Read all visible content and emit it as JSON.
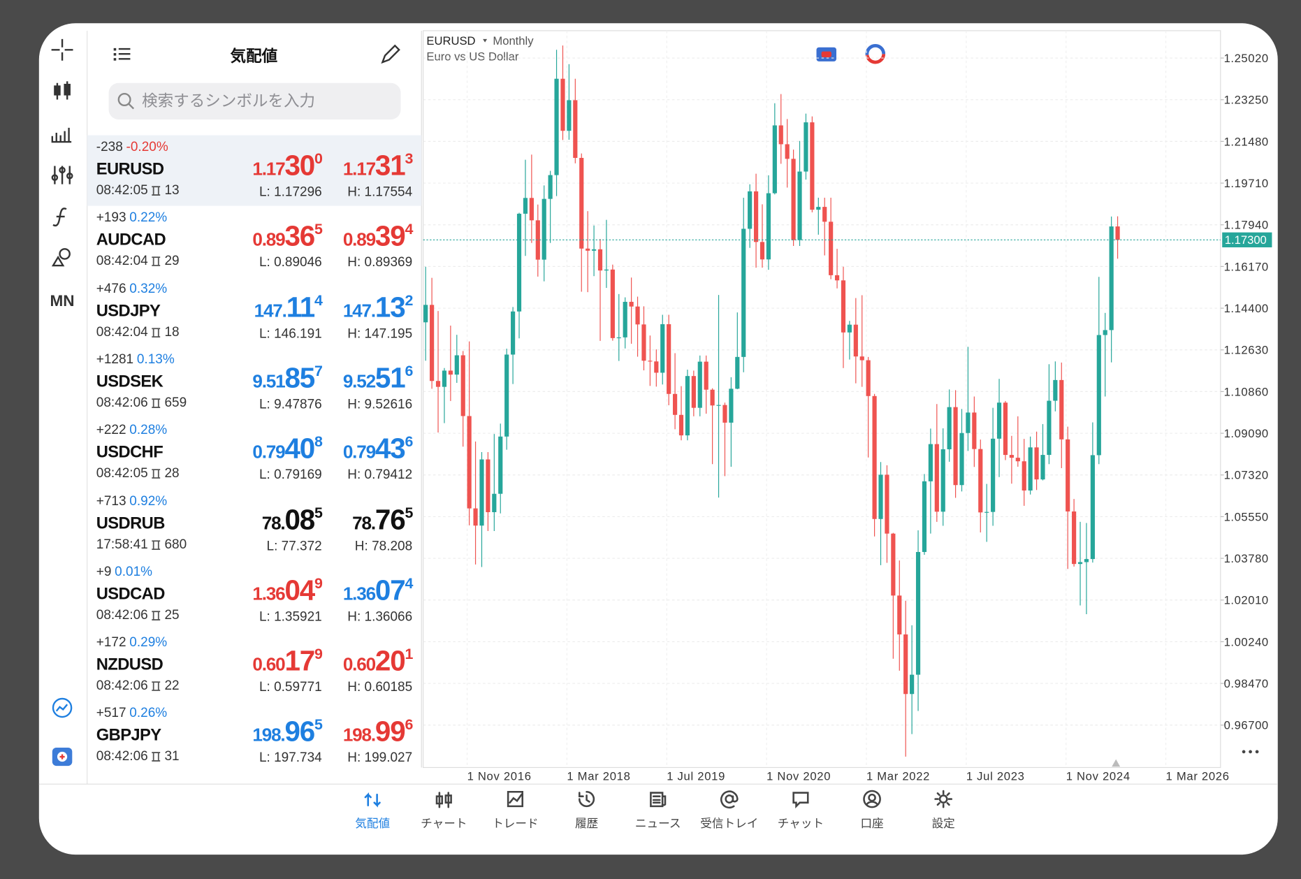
{
  "panel": {
    "title": "気配値",
    "search_placeholder": "検索するシンボルを入力"
  },
  "toolbar": {
    "period_label": "MN"
  },
  "quotes": [
    {
      "change": "-238",
      "pct": "-0.20%",
      "pct_color": "#e53935",
      "symbol": "EURUSD",
      "time": "08:42:05",
      "spread": "13",
      "bid": {
        "prefix": "1.17",
        "big": "30",
        "sup": "0"
      },
      "bid_color": "#e53935",
      "ask": {
        "prefix": "1.17",
        "big": "31",
        "sup": "3"
      },
      "ask_color": "#e53935",
      "low": "L: 1.17296",
      "high": "H: 1.17554",
      "selected": true
    },
    {
      "change": "+193",
      "pct": "0.22%",
      "pct_color": "#1e7fe0",
      "symbol": "AUDCAD",
      "time": "08:42:04",
      "spread": "29",
      "bid": {
        "prefix": "0.89",
        "big": "36",
        "sup": "5"
      },
      "bid_color": "#e53935",
      "ask": {
        "prefix": "0.89",
        "big": "39",
        "sup": "4"
      },
      "ask_color": "#e53935",
      "low": "L: 0.89046",
      "high": "H: 0.89369"
    },
    {
      "change": "+476",
      "pct": "0.32%",
      "pct_color": "#1e7fe0",
      "symbol": "USDJPY",
      "time": "08:42:04",
      "spread": "18",
      "bid": {
        "prefix": "147.",
        "big": "11",
        "sup": "4"
      },
      "bid_color": "#1e7fe0",
      "ask": {
        "prefix": "147.",
        "big": "13",
        "sup": "2"
      },
      "ask_color": "#1e7fe0",
      "low": "L: 146.191",
      "high": "H: 147.195"
    },
    {
      "change": "+1281",
      "pct": "0.13%",
      "pct_color": "#1e7fe0",
      "symbol": "USDSEK",
      "time": "08:42:06",
      "spread": "659",
      "bid": {
        "prefix": "9.51",
        "big": "85",
        "sup": "7"
      },
      "bid_color": "#1e7fe0",
      "ask": {
        "prefix": "9.52",
        "big": "51",
        "sup": "6"
      },
      "ask_color": "#1e7fe0",
      "low": "L: 9.47876",
      "high": "H: 9.52616"
    },
    {
      "change": "+222",
      "pct": "0.28%",
      "pct_color": "#1e7fe0",
      "symbol": "USDCHF",
      "time": "08:42:05",
      "spread": "28",
      "bid": {
        "prefix": "0.79",
        "big": "40",
        "sup": "8"
      },
      "bid_color": "#1e7fe0",
      "ask": {
        "prefix": "0.79",
        "big": "43",
        "sup": "6"
      },
      "ask_color": "#1e7fe0",
      "low": "L: 0.79169",
      "high": "H: 0.79412"
    },
    {
      "change": "+713",
      "pct": "0.92%",
      "pct_color": "#1e7fe0",
      "symbol": "USDRUB",
      "time": "17:58:41",
      "spread": "680",
      "bid": {
        "prefix": "78.",
        "big": "08",
        "sup": "5"
      },
      "bid_color": "#111111",
      "ask": {
        "prefix": "78.",
        "big": "76",
        "sup": "5"
      },
      "ask_color": "#111111",
      "low": "L: 77.372",
      "high": "H: 78.208"
    },
    {
      "change": "+9",
      "pct": "0.01%",
      "pct_color": "#1e7fe0",
      "symbol": "USDCAD",
      "time": "08:42:06",
      "spread": "25",
      "bid": {
        "prefix": "1.36",
        "big": "04",
        "sup": "9"
      },
      "bid_color": "#e53935",
      "ask": {
        "prefix": "1.36",
        "big": "07",
        "sup": "4"
      },
      "ask_color": "#1e7fe0",
      "low": "L: 1.35921",
      "high": "H: 1.36066"
    },
    {
      "change": "+172",
      "pct": "0.29%",
      "pct_color": "#1e7fe0",
      "symbol": "NZDUSD",
      "time": "08:42:06",
      "spread": "22",
      "bid": {
        "prefix": "0.60",
        "big": "17",
        "sup": "9"
      },
      "bid_color": "#e53935",
      "ask": {
        "prefix": "0.60",
        "big": "20",
        "sup": "1"
      },
      "ask_color": "#e53935",
      "low": "L: 0.59771",
      "high": "H: 0.60185"
    },
    {
      "change": "+517",
      "pct": "0.26%",
      "pct_color": "#1e7fe0",
      "symbol": "GBPJPY",
      "time": "08:42:06",
      "spread": "31",
      "bid": {
        "prefix": "198.",
        "big": "96",
        "sup": "5"
      },
      "bid_color": "#1e7fe0",
      "ask": {
        "prefix": "198.",
        "big": "99",
        "sup": "6"
      },
      "ask_color": "#e53935",
      "low": "L: 197.734",
      "high": "H: 199.027"
    }
  ],
  "chart": {
    "type": "candlestick",
    "symbol": "EURUSD",
    "period": "Monthly",
    "description": "Euro vs US Dollar",
    "up_color": "#26a69a",
    "down_color": "#ef5350",
    "grid": true,
    "ylim": [
      0.949,
      1.2618
    ],
    "yticks": [
      {
        "value": 1.2502,
        "label": "1.25020"
      },
      {
        "value": 1.2325,
        "label": "1.23250"
      },
      {
        "value": 1.2148,
        "label": "1.21480"
      },
      {
        "value": 1.1971,
        "label": "1.19710"
      },
      {
        "value": 1.1794,
        "label": "1.17940"
      },
      {
        "value": 1.1617,
        "label": "1.16170"
      },
      {
        "value": 1.144,
        "label": "1.14400"
      },
      {
        "value": 1.1263,
        "label": "1.12630"
      },
      {
        "value": 1.1086,
        "label": "1.10860"
      },
      {
        "value": 1.0909,
        "label": "1.09090"
      },
      {
        "value": 1.0732,
        "label": "1.07320"
      },
      {
        "value": 1.0555,
        "label": "1.05550"
      },
      {
        "value": 1.0378,
        "label": "1.03780"
      },
      {
        "value": 1.0201,
        "label": "1.02010"
      },
      {
        "value": 1.0024,
        "label": "1.00240"
      },
      {
        "value": 0.9847,
        "label": "0.98470"
      },
      {
        "value": 0.967,
        "label": "0.96700"
      }
    ],
    "current": {
      "value": 1.173,
      "label": "1.17300"
    },
    "x_labels": [
      "1 Nov 2016",
      "1 Mar 2018",
      "1 Jul 2019",
      "1 Nov 2020",
      "1 Mar 2022",
      "1 Jul 2023",
      "1 Nov 2024",
      "1 Mar 2026"
    ],
    "candles": [
      [
        1.138,
        1.1616,
        1.1217,
        1.1454
      ],
      [
        1.1454,
        1.1569,
        1.1098,
        1.1131
      ],
      [
        1.1131,
        1.1428,
        1.0912,
        1.1106
      ],
      [
        1.1106,
        1.1186,
        1.0952,
        1.1175
      ],
      [
        1.1175,
        1.1366,
        1.1046,
        1.1158
      ],
      [
        1.1158,
        1.1327,
        1.1123,
        1.124
      ],
      [
        1.124,
        1.1258,
        1.0852,
        1.0982
      ],
      [
        1.0982,
        1.1299,
        1.0518,
        1.059
      ],
      [
        1.059,
        1.0874,
        1.0352,
        1.0517
      ],
      [
        1.0517,
        1.0829,
        1.0341,
        1.0798
      ],
      [
        1.0798,
        1.0829,
        1.0494,
        1.0574
      ],
      [
        1.0574,
        1.0906,
        1.0494,
        1.0652
      ],
      [
        1.0652,
        1.095,
        1.0569,
        1.0895
      ],
      [
        1.0895,
        1.1268,
        1.0839,
        1.1243
      ],
      [
        1.1243,
        1.1445,
        1.1118,
        1.1426
      ],
      [
        1.1426,
        1.1845,
        1.1312,
        1.1841
      ],
      [
        1.1841,
        1.207,
        1.1662,
        1.1908
      ],
      [
        1.1908,
        1.2092,
        1.1717,
        1.1813
      ],
      [
        1.1813,
        1.188,
        1.1574,
        1.1646
      ],
      [
        1.1646,
        1.1961,
        1.1554,
        1.1904
      ],
      [
        1.1904,
        1.2023,
        1.1717,
        1.2005
      ],
      [
        1.2005,
        1.2537,
        1.1916,
        1.2414
      ],
      [
        1.2414,
        1.2555,
        1.2154,
        1.2193
      ],
      [
        1.2193,
        1.2476,
        1.2155,
        1.2323
      ],
      [
        1.2323,
        1.2414,
        1.2055,
        1.2078
      ],
      [
        1.2078,
        1.2097,
        1.151,
        1.1693
      ],
      [
        1.1693,
        1.1852,
        1.1508,
        1.1684
      ],
      [
        1.1684,
        1.1791,
        1.1576,
        1.169
      ],
      [
        1.169,
        1.1734,
        1.1301,
        1.16
      ],
      [
        1.16,
        1.1815,
        1.1526,
        1.1604
      ],
      [
        1.1604,
        1.1625,
        1.1302,
        1.1313
      ],
      [
        1.1313,
        1.15,
        1.1216,
        1.1316
      ],
      [
        1.1316,
        1.1486,
        1.1269,
        1.1467
      ],
      [
        1.1467,
        1.157,
        1.1289,
        1.1447
      ],
      [
        1.1447,
        1.1489,
        1.1234,
        1.1371
      ],
      [
        1.1371,
        1.1448,
        1.1176,
        1.1217
      ],
      [
        1.1217,
        1.1324,
        1.111,
        1.1214
      ],
      [
        1.1214,
        1.1265,
        1.1107,
        1.1166
      ],
      [
        1.1166,
        1.1412,
        1.1116,
        1.1372
      ],
      [
        1.1372,
        1.1412,
        1.1028,
        1.1076
      ],
      [
        1.1076,
        1.1249,
        1.0926,
        1.0987
      ],
      [
        1.0987,
        1.1109,
        1.0879,
        1.09
      ],
      [
        1.09,
        1.1179,
        1.0879,
        1.1152
      ],
      [
        1.1152,
        1.1175,
        1.0981,
        1.1017
      ],
      [
        1.1017,
        1.1239,
        1.0981,
        1.1213
      ],
      [
        1.1213,
        1.1239,
        1.0992,
        1.1094
      ],
      [
        1.1094,
        1.11,
        1.0778,
        1.1027
      ],
      [
        1.1027,
        1.1496,
        1.0636,
        1.1029
      ],
      [
        1.1029,
        1.1039,
        1.0727,
        1.0954
      ],
      [
        1.0954,
        1.1147,
        1.0767,
        1.1098
      ],
      [
        1.1098,
        1.1422,
        1.1096,
        1.1233
      ],
      [
        1.1233,
        1.1909,
        1.1168,
        1.1777
      ],
      [
        1.1777,
        1.1966,
        1.1696,
        1.1936
      ],
      [
        1.1936,
        1.2011,
        1.1612,
        1.1721
      ],
      [
        1.1721,
        1.1881,
        1.1612,
        1.1647
      ],
      [
        1.1647,
        1.2004,
        1.1603,
        1.1928
      ],
      [
        1.1928,
        1.231,
        1.1923,
        1.2216
      ],
      [
        1.2216,
        1.2349,
        1.2053,
        1.2136
      ],
      [
        1.2136,
        1.2243,
        1.1952,
        1.2074
      ],
      [
        1.2074,
        1.2113,
        1.1704,
        1.1729
      ],
      [
        1.1729,
        1.215,
        1.1704,
        1.202
      ],
      [
        1.202,
        1.2266,
        1.1986,
        1.2229
      ],
      [
        1.2229,
        1.2254,
        1.1847,
        1.1858
      ],
      [
        1.1858,
        1.1909,
        1.1752,
        1.187
      ],
      [
        1.187,
        1.1909,
        1.1664,
        1.1807
      ],
      [
        1.1807,
        1.1909,
        1.1563,
        1.158
      ],
      [
        1.158,
        1.1692,
        1.1524,
        1.1558
      ],
      [
        1.1558,
        1.1616,
        1.1186,
        1.1337
      ],
      [
        1.1337,
        1.1386,
        1.1222,
        1.137
      ],
      [
        1.137,
        1.1483,
        1.1121,
        1.1235
      ],
      [
        1.1235,
        1.1495,
        1.1106,
        1.1219
      ],
      [
        1.1219,
        1.1233,
        1.0806,
        1.1067
      ],
      [
        1.1067,
        1.1076,
        1.0471,
        1.0545
      ],
      [
        1.0545,
        1.0787,
        1.0349,
        1.0733
      ],
      [
        1.0733,
        1.0773,
        1.0359,
        1.0483
      ],
      [
        1.0483,
        1.0486,
        0.9952,
        1.022
      ],
      [
        1.022,
        1.0369,
        0.9901,
        1.0055
      ],
      [
        1.0055,
        1.0198,
        0.9536,
        0.9802
      ],
      [
        0.9802,
        1.0094,
        0.9632,
        0.9884
      ],
      [
        0.9884,
        1.0497,
        0.973,
        1.0405
      ],
      [
        1.0405,
        1.0736,
        1.0393,
        1.0705
      ],
      [
        1.0705,
        1.0929,
        1.0483,
        1.0863
      ],
      [
        1.0863,
        1.1033,
        1.0533,
        1.0576
      ],
      [
        1.0576,
        1.093,
        1.0516,
        1.0841
      ],
      [
        1.0841,
        1.1095,
        1.0788,
        1.102
      ],
      [
        1.102,
        1.1092,
        1.0635,
        1.0689
      ],
      [
        1.0689,
        1.1012,
        1.0662,
        1.091
      ],
      [
        1.091,
        1.1276,
        1.0834,
        1.0997
      ],
      [
        1.0997,
        1.1065,
        1.0766,
        1.0842
      ],
      [
        1.0842,
        1.0882,
        1.0488,
        1.0573
      ],
      [
        1.0573,
        1.0694,
        1.0448,
        1.0575
      ],
      [
        1.0575,
        1.1017,
        1.0516,
        1.0886
      ],
      [
        1.0886,
        1.114,
        1.0723,
        1.1039
      ],
      [
        1.1039,
        1.1046,
        1.0795,
        1.0817
      ],
      [
        1.0817,
        1.0898,
        1.0695,
        1.0805
      ],
      [
        1.0805,
        1.0981,
        1.0767,
        1.079
      ],
      [
        1.079,
        1.0885,
        1.0601,
        1.0666
      ],
      [
        1.0666,
        1.0895,
        1.0649,
        1.0849
      ],
      [
        1.0849,
        1.0916,
        1.0668,
        1.0713
      ],
      [
        1.0713,
        1.0948,
        1.0709,
        1.0817
      ],
      [
        1.0817,
        1.1202,
        1.0778,
        1.1047
      ],
      [
        1.1047,
        1.1214,
        1.1002,
        1.1135
      ],
      [
        1.1135,
        1.1209,
        1.0761,
        1.0883
      ],
      [
        1.0883,
        1.0937,
        1.0333,
        1.0577
      ],
      [
        1.0577,
        1.063,
        1.0343,
        1.0354
      ],
      [
        1.0354,
        1.0533,
        1.0178,
        1.0362
      ],
      [
        1.0362,
        1.0528,
        1.0141,
        1.0375
      ],
      [
        1.0375,
        1.0955,
        1.036,
        1.0816
      ],
      [
        1.0816,
        1.1573,
        1.0778,
        1.1326
      ],
      [
        1.1326,
        1.142,
        1.1065,
        1.1347
      ],
      [
        1.1347,
        1.1829,
        1.121,
        1.1787
      ],
      [
        1.1787,
        1.183,
        1.165,
        1.173
      ]
    ]
  },
  "tabs": [
    {
      "label": "気配値",
      "active": true
    },
    {
      "label": "チャート"
    },
    {
      "label": "トレード"
    },
    {
      "label": "履歴"
    },
    {
      "label": "ニュース"
    },
    {
      "label": "受信トレイ"
    },
    {
      "label": "チャット"
    },
    {
      "label": "口座"
    },
    {
      "label": "設定"
    }
  ]
}
